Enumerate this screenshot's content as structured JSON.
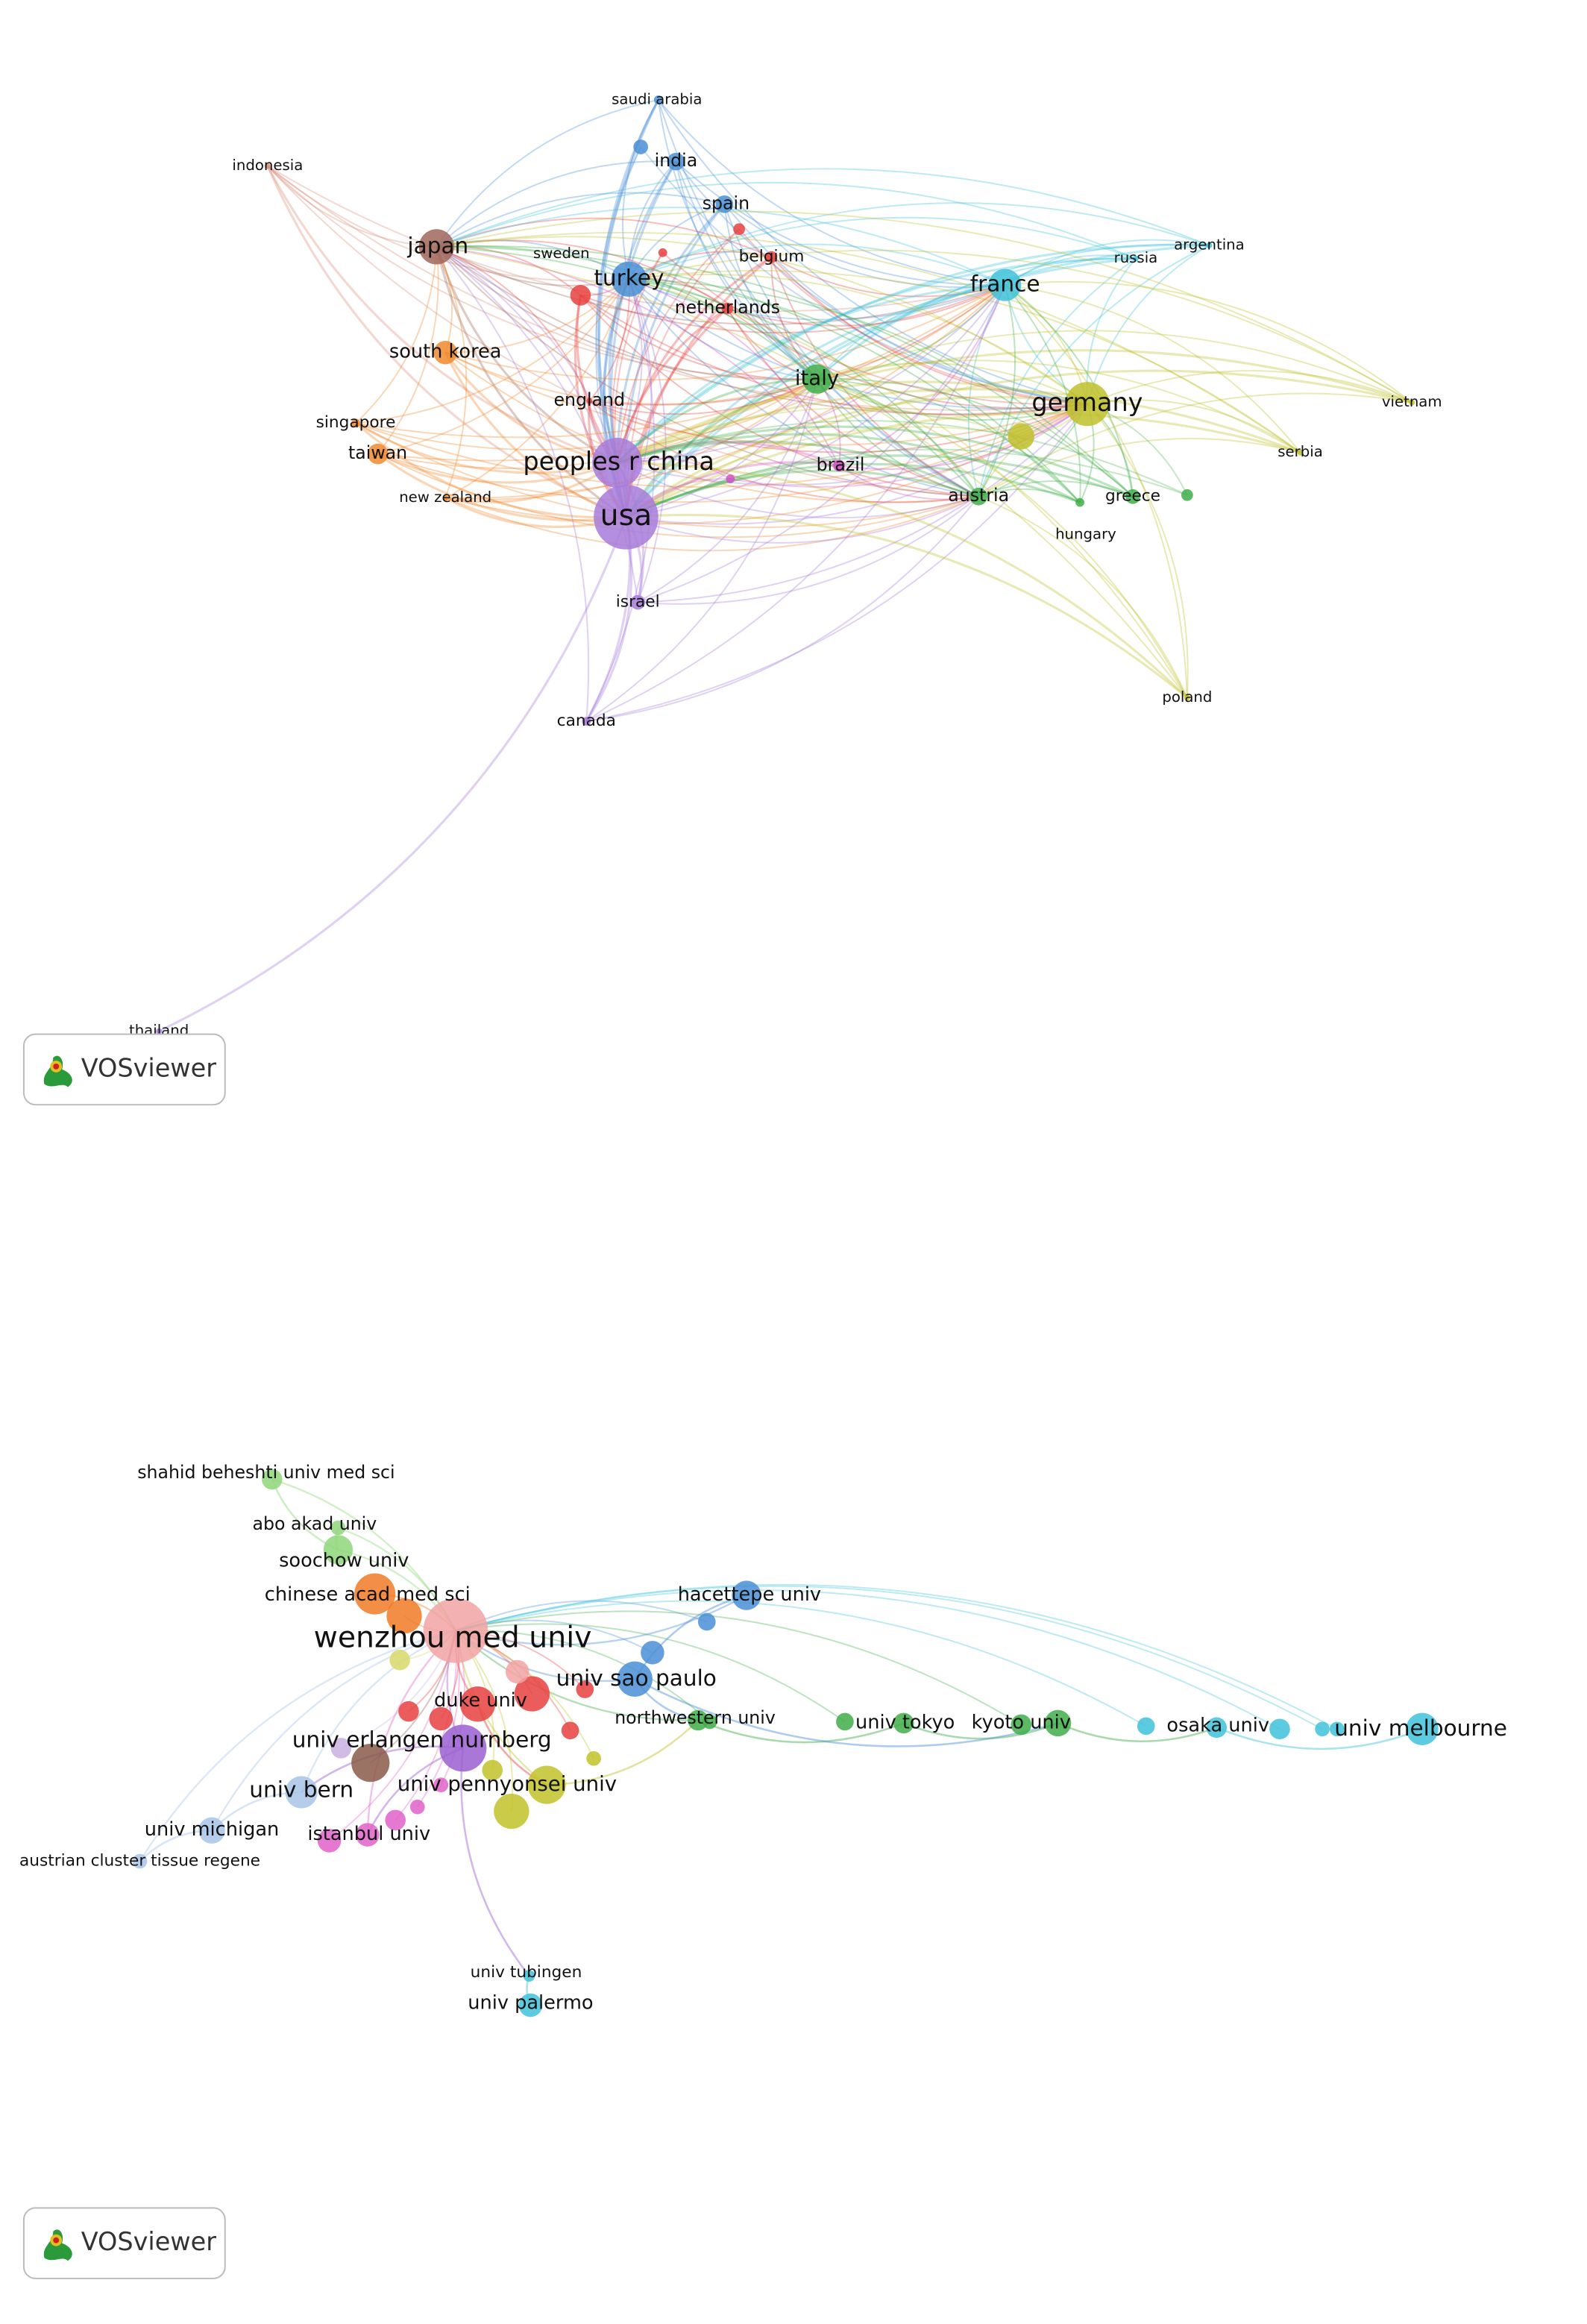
{
  "network_1": {
    "nodes": [
      {
        "label": "saudi arabia"
      },
      {
        "label": "indonesia"
      },
      {
        "label": "india"
      },
      {
        "label": "spain"
      },
      {
        "label": "japan"
      },
      {
        "label": "sweden"
      },
      {
        "label": "turkey"
      },
      {
        "label": "belgium"
      },
      {
        "label": "netherlands"
      },
      {
        "label": "france"
      },
      {
        "label": "russia"
      },
      {
        "label": "argentina"
      },
      {
        "label": "south korea"
      },
      {
        "label": "italy"
      },
      {
        "label": "germany"
      },
      {
        "label": "vietnam"
      },
      {
        "label": "england"
      },
      {
        "label": "singapore"
      },
      {
        "label": "taiwan"
      },
      {
        "label": "peoples r china"
      },
      {
        "label": "brazil"
      },
      {
        "label": "new zealand"
      },
      {
        "label": "serbia"
      },
      {
        "label": "austria"
      },
      {
        "label": "greece"
      },
      {
        "label": "hungary"
      },
      {
        "label": "usa"
      },
      {
        "label": "israel"
      },
      {
        "label": "canada"
      },
      {
        "label": "poland"
      },
      {
        "label": "thailand"
      }
    ]
  },
  "logo_1": "VOSviewer",
  "network_2": {
    "nodes": [
      {
        "label": "shahid beheshti univ med sci"
      },
      {
        "label": "abo akad univ"
      },
      {
        "label": "soochow univ"
      },
      {
        "label": "chinese acad med sci"
      },
      {
        "label": "wenzhou med univ"
      },
      {
        "label": "hacettepe univ"
      },
      {
        "label": "univ sao paulo"
      },
      {
        "label": "duke univ"
      },
      {
        "label": "northwestern univ"
      },
      {
        "label": "univ tokyo"
      },
      {
        "label": "kyoto univ"
      },
      {
        "label": "osaka univ"
      },
      {
        "label": "univ melbourne"
      },
      {
        "label": "univ erlangen nurnberg"
      },
      {
        "label": "univ bern"
      },
      {
        "label": "univ pennyonsei univ"
      },
      {
        "label": "univ michigan"
      },
      {
        "label": "istanbul univ"
      },
      {
        "label": "austrian cluster tissue regene"
      },
      {
        "label": "univ tubingen"
      },
      {
        "label": "univ palermo"
      }
    ]
  },
  "logo_2": "VOSviewer"
}
